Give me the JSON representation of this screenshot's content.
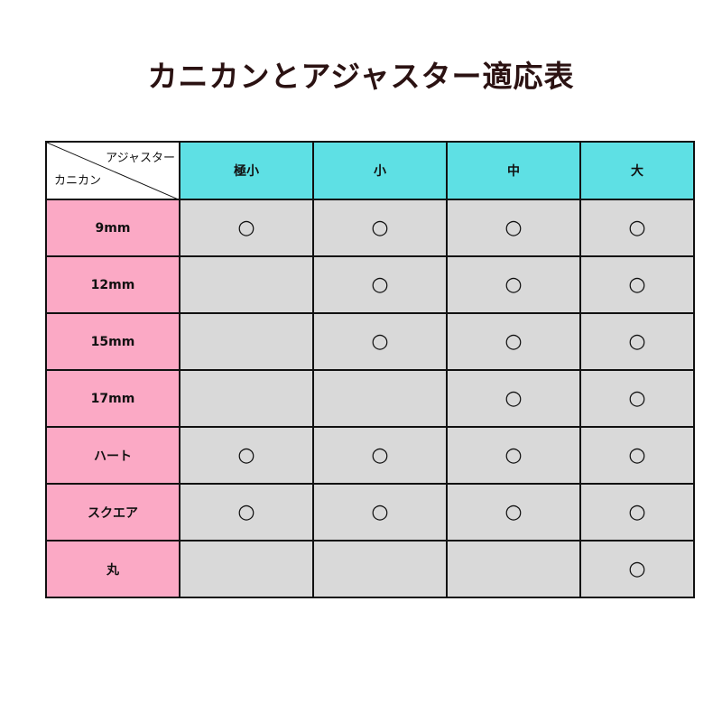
{
  "title": "カニカンとアジャスター適応表",
  "table": {
    "corner_column_label": "アジャスター",
    "corner_row_label": "カニカン",
    "columns": [
      "極小",
      "小",
      "中",
      "大"
    ],
    "rows": [
      {
        "label": "9mm",
        "marks": [
          "○",
          "○",
          "○",
          "○"
        ]
      },
      {
        "label": "12mm",
        "marks": [
          "",
          "○",
          "○",
          "○"
        ]
      },
      {
        "label": "15mm",
        "marks": [
          "",
          "○",
          "○",
          "○"
        ]
      },
      {
        "label": "17mm",
        "marks": [
          "",
          "",
          "○",
          "○"
        ]
      },
      {
        "label": "ハート",
        "marks": [
          "○",
          "○",
          "○",
          "○"
        ]
      },
      {
        "label": "スクエア",
        "marks": [
          "○",
          "○",
          "○",
          "○"
        ]
      },
      {
        "label": "丸",
        "marks": [
          "",
          "",
          "",
          "○"
        ]
      }
    ]
  },
  "colors": {
    "header": "#5ee0e4",
    "row_header": "#fba9c5",
    "cell": "#d9d9d9",
    "title": "#2b1212"
  }
}
